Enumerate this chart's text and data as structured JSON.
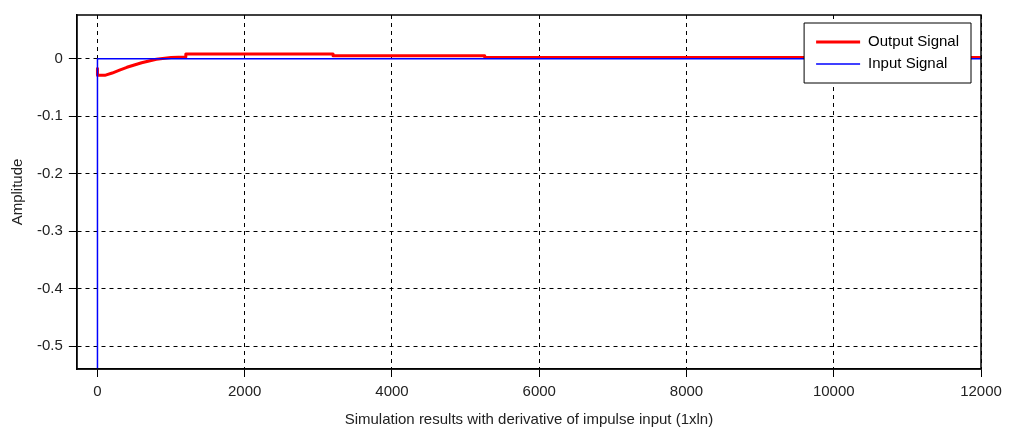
{
  "chart_data": {
    "type": "line",
    "xlabel": "Simulation results with derivative of impulse input (1xln)",
    "ylabel": "Amplitude",
    "xlim": [
      -280,
      12000
    ],
    "ylim": [
      -0.54,
      0.076
    ],
    "xticks": [
      0,
      2000,
      4000,
      6000,
      8000,
      10000,
      12000
    ],
    "yticks": [
      -0.5,
      -0.4,
      -0.3,
      -0.2,
      -0.1,
      0
    ],
    "grid": true,
    "legend": "top right",
    "line_style": "solid",
    "marker": "none",
    "series": [
      {
        "name": "Output Signal",
        "color": "#ff0000",
        "x": [
          0,
          0,
          100,
          200,
          300,
          400,
          500,
          600,
          700,
          800,
          1000,
          1200,
          1200,
          3200,
          3200,
          5260,
          5260,
          12000
        ],
        "values": [
          -0.017,
          -0.029,
          -0.029,
          -0.025,
          -0.02,
          -0.015,
          -0.011,
          -0.007,
          -0.004,
          -0.001,
          0.002,
          0.003,
          0.008,
          0.008,
          0.005,
          0.005,
          0.002,
          0.002
        ]
      },
      {
        "name": "Input Signal",
        "color": "#0000ff",
        "x": [
          0,
          0,
          12000
        ],
        "values": [
          -0.54,
          0,
          0
        ]
      }
    ]
  }
}
